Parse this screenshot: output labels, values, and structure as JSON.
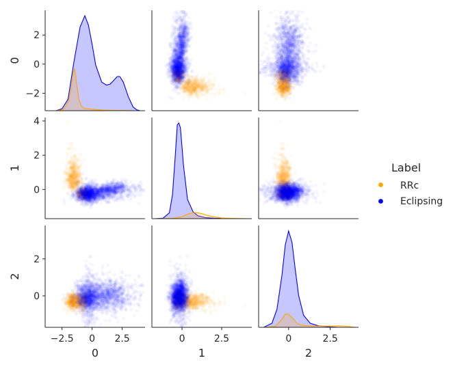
{
  "chart_data": {
    "type": "pairgrid",
    "variables": [
      "0",
      "1",
      "2"
    ],
    "axes": {
      "0": {
        "range": [
          -3.9,
          4.4
        ],
        "ticks": [
          -2.5,
          0,
          2.5
        ],
        "tick_labels": [
          "−2.5",
          "0",
          "2.5"
        ],
        "y_range": [
          -3.2,
          3.7
        ],
        "y_ticks": [
          -2,
          0,
          2
        ],
        "y_tick_labels": [
          "−2",
          "0",
          "2"
        ]
      },
      "1": {
        "range": [
          -1.9,
          4.4
        ],
        "ticks": [
          0,
          2.5
        ],
        "tick_labels": [
          "0",
          "2.5"
        ],
        "y_range": [
          -1.7,
          4.2
        ],
        "y_ticks": [
          0,
          2,
          4
        ],
        "y_tick_labels": [
          "0",
          "2",
          "4"
        ]
      },
      "2": {
        "range": [
          -1.8,
          4.2
        ],
        "ticks": [
          0,
          2.5
        ],
        "tick_labels": [
          "0",
          "2.5"
        ],
        "y_range": [
          -1.7,
          3.8
        ],
        "y_ticks": [
          0,
          2
        ],
        "y_tick_labels": [
          "0",
          "2"
        ]
      }
    },
    "legend": {
      "title": "Label",
      "position": "right",
      "entries": [
        {
          "name": "RRc",
          "color": "#FFA500"
        },
        {
          "name": "Eclipsing",
          "color": "#0000FF"
        }
      ]
    },
    "series": [
      {
        "name": "RRc",
        "color": "#FFA500",
        "means": [
          -1.5,
          0.8,
          -0.2
        ],
        "stds": [
          0.35,
          0.9,
          0.25
        ],
        "kde": {
          "0": {
            "x": [
              -3,
              -2.4,
              -2,
              -1.8,
              -1.6,
              -1.45,
              -1.3,
              -1.1,
              -0.9,
              -0.6,
              -0.3,
              0,
              0.5,
              1.0,
              1.5,
              2.0,
              2.5,
              3.0,
              3.5
            ],
            "density": [
              0,
              0.01,
              0.09,
              0.19,
              0.37,
              0.445,
              0.3,
              0.12,
              0.05,
              0.02,
              0.02,
              0.015,
              0.01,
              0.005,
              0.005,
              0.003,
              0.003,
              0.002,
              0
            ]
          },
          "1": {
            "x": [
              -1.7,
              -0.6,
              0,
              0.4,
              0.8,
              1.2,
              1.6,
              2.0,
              2.5,
              3.0,
              3.5,
              4.0,
              4.2
            ],
            "density": [
              0,
              0.003,
              0.02,
              0.05,
              0.065,
              0.055,
              0.035,
              0.02,
              0.008,
              0.004,
              0.002,
              0.001,
              0
            ]
          },
          "2": {
            "x": [
              -1.5,
              -0.8,
              -0.5,
              -0.2,
              0,
              0.25,
              0.5,
              0.8,
              1.2,
              1.8,
              2.5,
              3.0,
              3.5,
              4.0
            ],
            "density": [
              0,
              0.01,
              0.06,
              0.13,
              0.13,
              0.09,
              0.04,
              0.02,
              0.015,
              0.012,
              0.012,
              0.015,
              0.01,
              0
            ]
          }
        }
      },
      {
        "name": "Eclipsing",
        "color": "#0000FF",
        "means": [
          0.0,
          -0.2,
          -0.1
        ],
        "stds": [
          1.3,
          0.35,
          0.45
        ],
        "kde": {
          "0": {
            "x": [
              -3,
              -2.5,
              -2,
              -1.5,
              -1,
              -0.6,
              -0.3,
              0,
              0.3,
              0.8,
              1.2,
              1.5,
              1.8,
              2.1,
              2.3,
              2.6,
              3,
              3.4,
              3.7,
              4.0
            ],
            "density": [
              0,
              0.02,
              0.12,
              0.52,
              0.88,
              1.0,
              0.9,
              0.7,
              0.48,
              0.3,
              0.27,
              0.28,
              0.32,
              0.36,
              0.36,
              0.3,
              0.15,
              0.04,
              0.01,
              0
            ]
          },
          "1": {
            "x": [
              -1.7,
              -1.2,
              -0.8,
              -0.6,
              -0.45,
              -0.3,
              -0.2,
              -0.1,
              0.1,
              0.35,
              0.7,
              1.0,
              1.5,
              2.0,
              2.5,
              3.0
            ],
            "density": [
              0,
              0.005,
              0.06,
              0.25,
              0.6,
              0.98,
              1.0,
              0.95,
              0.55,
              0.2,
              0.07,
              0.03,
              0.01,
              0.005,
              0.002,
              0
            ]
          },
          "2": {
            "x": [
              -1.5,
              -1.0,
              -0.7,
              -0.4,
              -0.2,
              0,
              0.2,
              0.4,
              0.6,
              0.9,
              1.3,
              1.8,
              2.5,
              3.0
            ],
            "density": [
              0,
              0.04,
              0.18,
              0.52,
              0.82,
              0.96,
              0.85,
              0.58,
              0.32,
              0.12,
              0.04,
              0.015,
              0.005,
              0
            ]
          }
        }
      }
    ]
  }
}
